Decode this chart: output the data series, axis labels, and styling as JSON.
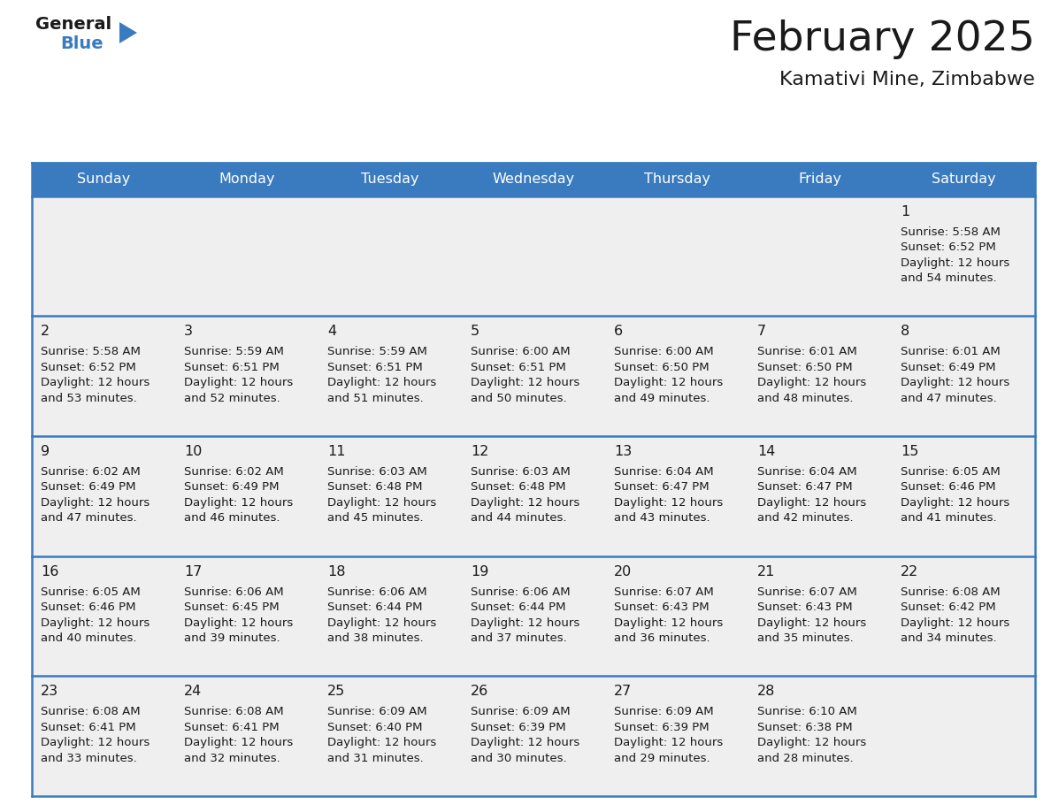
{
  "title": "February 2025",
  "subtitle": "Kamativi Mine, Zimbabwe",
  "header_bg": "#3a7bbf",
  "header_text": "#ffffff",
  "day_names": [
    "Sunday",
    "Monday",
    "Tuesday",
    "Wednesday",
    "Thursday",
    "Friday",
    "Saturday"
  ],
  "cell_bg": "#efefef",
  "cell_border": "#3a7bbf",
  "day_num_color": "#1a1a1a",
  "info_color": "#1a1a1a",
  "days": [
    {
      "date": 1,
      "col": 6,
      "row": 0,
      "sunrise": "5:58 AM",
      "sunset": "6:52 PM",
      "dl_hours": "12 hours",
      "dl_mins": "54 minutes."
    },
    {
      "date": 2,
      "col": 0,
      "row": 1,
      "sunrise": "5:58 AM",
      "sunset": "6:52 PM",
      "dl_hours": "12 hours",
      "dl_mins": "53 minutes."
    },
    {
      "date": 3,
      "col": 1,
      "row": 1,
      "sunrise": "5:59 AM",
      "sunset": "6:51 PM",
      "dl_hours": "12 hours",
      "dl_mins": "52 minutes."
    },
    {
      "date": 4,
      "col": 2,
      "row": 1,
      "sunrise": "5:59 AM",
      "sunset": "6:51 PM",
      "dl_hours": "12 hours",
      "dl_mins": "51 minutes."
    },
    {
      "date": 5,
      "col": 3,
      "row": 1,
      "sunrise": "6:00 AM",
      "sunset": "6:51 PM",
      "dl_hours": "12 hours",
      "dl_mins": "50 minutes."
    },
    {
      "date": 6,
      "col": 4,
      "row": 1,
      "sunrise": "6:00 AM",
      "sunset": "6:50 PM",
      "dl_hours": "12 hours",
      "dl_mins": "49 minutes."
    },
    {
      "date": 7,
      "col": 5,
      "row": 1,
      "sunrise": "6:01 AM",
      "sunset": "6:50 PM",
      "dl_hours": "12 hours",
      "dl_mins": "48 minutes."
    },
    {
      "date": 8,
      "col": 6,
      "row": 1,
      "sunrise": "6:01 AM",
      "sunset": "6:49 PM",
      "dl_hours": "12 hours",
      "dl_mins": "47 minutes."
    },
    {
      "date": 9,
      "col": 0,
      "row": 2,
      "sunrise": "6:02 AM",
      "sunset": "6:49 PM",
      "dl_hours": "12 hours",
      "dl_mins": "47 minutes."
    },
    {
      "date": 10,
      "col": 1,
      "row": 2,
      "sunrise": "6:02 AM",
      "sunset": "6:49 PM",
      "dl_hours": "12 hours",
      "dl_mins": "46 minutes."
    },
    {
      "date": 11,
      "col": 2,
      "row": 2,
      "sunrise": "6:03 AM",
      "sunset": "6:48 PM",
      "dl_hours": "12 hours",
      "dl_mins": "45 minutes."
    },
    {
      "date": 12,
      "col": 3,
      "row": 2,
      "sunrise": "6:03 AM",
      "sunset": "6:48 PM",
      "dl_hours": "12 hours",
      "dl_mins": "44 minutes."
    },
    {
      "date": 13,
      "col": 4,
      "row": 2,
      "sunrise": "6:04 AM",
      "sunset": "6:47 PM",
      "dl_hours": "12 hours",
      "dl_mins": "43 minutes."
    },
    {
      "date": 14,
      "col": 5,
      "row": 2,
      "sunrise": "6:04 AM",
      "sunset": "6:47 PM",
      "dl_hours": "12 hours",
      "dl_mins": "42 minutes."
    },
    {
      "date": 15,
      "col": 6,
      "row": 2,
      "sunrise": "6:05 AM",
      "sunset": "6:46 PM",
      "dl_hours": "12 hours",
      "dl_mins": "41 minutes."
    },
    {
      "date": 16,
      "col": 0,
      "row": 3,
      "sunrise": "6:05 AM",
      "sunset": "6:46 PM",
      "dl_hours": "12 hours",
      "dl_mins": "40 minutes."
    },
    {
      "date": 17,
      "col": 1,
      "row": 3,
      "sunrise": "6:06 AM",
      "sunset": "6:45 PM",
      "dl_hours": "12 hours",
      "dl_mins": "39 minutes."
    },
    {
      "date": 18,
      "col": 2,
      "row": 3,
      "sunrise": "6:06 AM",
      "sunset": "6:44 PM",
      "dl_hours": "12 hours",
      "dl_mins": "38 minutes."
    },
    {
      "date": 19,
      "col": 3,
      "row": 3,
      "sunrise": "6:06 AM",
      "sunset": "6:44 PM",
      "dl_hours": "12 hours",
      "dl_mins": "37 minutes."
    },
    {
      "date": 20,
      "col": 4,
      "row": 3,
      "sunrise": "6:07 AM",
      "sunset": "6:43 PM",
      "dl_hours": "12 hours",
      "dl_mins": "36 minutes."
    },
    {
      "date": 21,
      "col": 5,
      "row": 3,
      "sunrise": "6:07 AM",
      "sunset": "6:43 PM",
      "dl_hours": "12 hours",
      "dl_mins": "35 minutes."
    },
    {
      "date": 22,
      "col": 6,
      "row": 3,
      "sunrise": "6:08 AM",
      "sunset": "6:42 PM",
      "dl_hours": "12 hours",
      "dl_mins": "34 minutes."
    },
    {
      "date": 23,
      "col": 0,
      "row": 4,
      "sunrise": "6:08 AM",
      "sunset": "6:41 PM",
      "dl_hours": "12 hours",
      "dl_mins": "33 minutes."
    },
    {
      "date": 24,
      "col": 1,
      "row": 4,
      "sunrise": "6:08 AM",
      "sunset": "6:41 PM",
      "dl_hours": "12 hours",
      "dl_mins": "32 minutes."
    },
    {
      "date": 25,
      "col": 2,
      "row": 4,
      "sunrise": "6:09 AM",
      "sunset": "6:40 PM",
      "dl_hours": "12 hours",
      "dl_mins": "31 minutes."
    },
    {
      "date": 26,
      "col": 3,
      "row": 4,
      "sunrise": "6:09 AM",
      "sunset": "6:39 PM",
      "dl_hours": "12 hours",
      "dl_mins": "30 minutes."
    },
    {
      "date": 27,
      "col": 4,
      "row": 4,
      "sunrise": "6:09 AM",
      "sunset": "6:39 PM",
      "dl_hours": "12 hours",
      "dl_mins": "29 minutes."
    },
    {
      "date": 28,
      "col": 5,
      "row": 4,
      "sunrise": "6:10 AM",
      "sunset": "6:38 PM",
      "dl_hours": "12 hours",
      "dl_mins": "28 minutes."
    }
  ],
  "fig_width": 11.88,
  "fig_height": 9.18,
  "dpi": 100
}
